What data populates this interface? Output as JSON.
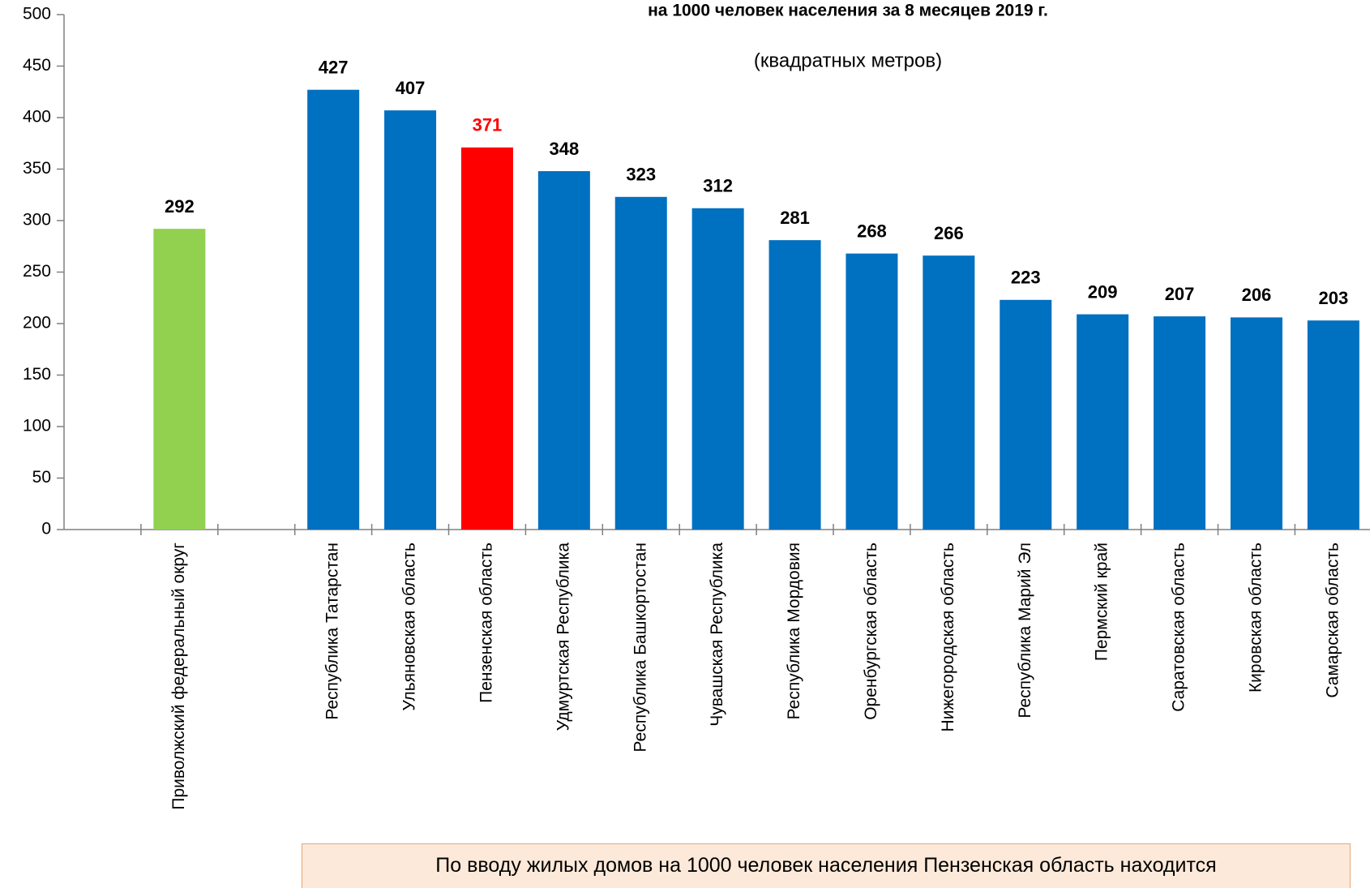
{
  "chart_data": {
    "type": "bar",
    "title": "на 1000 человек населения за 8 месяцев 2019 г.",
    "subtitle": "(квадратных метров)",
    "categories": [
      null,
      "Приволжский федеральный  округ",
      null,
      "Республика  Татарстан",
      "Ульяновская область",
      "Пензенская область",
      "Удмуртская Республика",
      "Республика Башкортостан",
      "Чувашская Республика",
      "Республика Мордовия",
      "Оренбургская область",
      "Нижегородская область",
      "Республика Марий Эл",
      "Пермский край",
      "Саратовская область",
      "Кировская область",
      "Самарская область"
    ],
    "values": [
      null,
      292,
      null,
      427,
      407,
      371,
      348,
      323,
      312,
      281,
      268,
      266,
      223,
      209,
      207,
      206,
      203
    ],
    "colors": [
      null,
      "#92d050",
      null,
      "#0070c0",
      "#0070c0",
      "#ff0000",
      "#0070c0",
      "#0070c0",
      "#0070c0",
      "#0070c0",
      "#0070c0",
      "#0070c0",
      "#0070c0",
      "#0070c0",
      "#0070c0",
      "#0070c0",
      "#0070c0"
    ],
    "label_colors": [
      null,
      "#000000",
      null,
      "#000000",
      "#000000",
      "#ff0000",
      "#000000",
      "#000000",
      "#000000",
      "#000000",
      "#000000",
      "#000000",
      "#000000",
      "#000000",
      "#000000",
      "#000000",
      "#000000"
    ],
    "ylim": [
      0,
      500
    ],
    "yticks": [
      0,
      50,
      100,
      150,
      200,
      250,
      300,
      350,
      400,
      450,
      500
    ],
    "grid": false,
    "note": "По вводу жилых домов на 1000 человек населения Пензенская область находится"
  }
}
